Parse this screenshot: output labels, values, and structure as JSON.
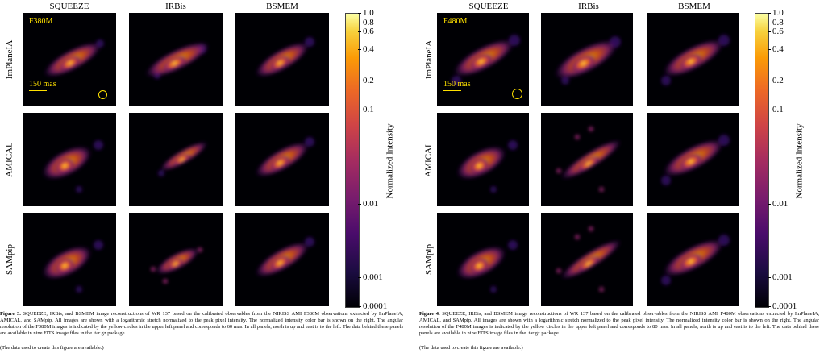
{
  "figures": [
    {
      "columns": [
        "SQUEEZE",
        "IRBis",
        "BSMEM"
      ],
      "rows": [
        "ImPlaneIA",
        "AMICAL",
        "SAMpip"
      ],
      "filter_label": "F380M",
      "scale_label": "150 mas",
      "colorbar": {
        "title": "Normalized Intensity",
        "ticks": [
          "1.0",
          "0.8",
          "0.6",
          "0.4",
          "0.2",
          "0.1",
          "0.01",
          "0.001",
          "0.0001"
        ]
      },
      "caption_label": "Figure 3.",
      "caption_text": "SQUEEZE, IRBis, and BSMEM image reconstructions of WR 137 based on the calibrated observables from the NIRISS AMI F380M observations extracted by ImPlaneIA, AMICAL, and SAMpip. All images are shown with a logarithmic stretch normalized to the peak pixel intensity. The normalized intensity color bar is shown on the right. The angular resolution of the F380M images is indicated by the yellow circles in the upper left panel and corresponds to 60 mas. In all panels, north is up and east is to the left. The data behind these panels are available in nine FITS image files in the .tar.gz package.",
      "data_note": "(The data used to create this figure are available.)"
    },
    {
      "columns": [
        "SQUEEZE",
        "IRBis",
        "BSMEM"
      ],
      "rows": [
        "ImPlaneIA",
        "AMICAL",
        "SAMpip"
      ],
      "filter_label": "F480M",
      "scale_label": "150 mas",
      "colorbar": {
        "title": "Normalized Intensity",
        "ticks": [
          "1.0",
          "0.8",
          "0.6",
          "0.4",
          "0.2",
          "0.1",
          "0.01",
          "0.001",
          "0.0001"
        ]
      },
      "caption_label": "Figure 4.",
      "caption_text": "SQUEEZE, IRBis, and BSMEM image reconstructions of WR 137 based on the calibrated observables from the NIRISS AMI F480M observations extracted by ImPlaneIA, AMICAL, and SAMpip. All images are shown with a logarithmic stretch normalized to the peak pixel intensity. The normalized intensity color bar is shown on the right. The angular resolution of the F480M images is indicated by the yellow circles in the upper left panel and corresponds to 80 mas. In all panels, north is up and east is to the left. The data behind these panels are available in nine FITS image files in the .tar.gz package.",
      "data_note": "(The data used to create this figure are available.)"
    }
  ],
  "colors": {
    "panel_bg": "#000004",
    "annotation": "#ffe000",
    "core": "#fcffa4",
    "inner": "#fb9b06",
    "mid": "#e3531f",
    "outer": "#8c2369",
    "halo": "#3b0f70"
  }
}
